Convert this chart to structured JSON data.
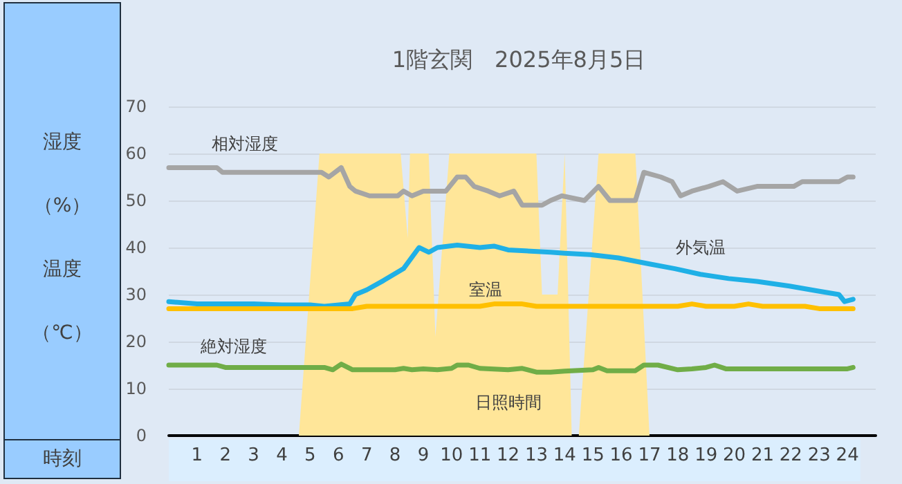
{
  "chart_data": {
    "type": "line",
    "title": "1階玄関　2025年8月5日",
    "ylabel": "湿度（%）温度（℃）",
    "xlabel": "時刻",
    "xlim": [
      0,
      25
    ],
    "xticks": [
      1,
      2,
      3,
      4,
      5,
      6,
      7,
      8,
      9,
      10,
      11,
      12,
      13,
      14,
      15,
      16,
      17,
      18,
      19,
      20,
      21,
      22,
      23,
      24
    ],
    "ylim": [
      0,
      70
    ],
    "yticks": [
      0,
      10,
      20,
      30,
      40,
      50,
      60,
      70
    ],
    "grid": "y",
    "legend": false,
    "marker": "none",
    "line_style": "solid",
    "series": [
      {
        "name": "日照時間",
        "type": "area",
        "color": "#ffe699",
        "x": [
          0,
          4.6,
          5.33,
          8.2,
          8.45,
          8.53,
          9.19,
          9.43,
          9.92,
          13.0,
          13.2,
          13.75,
          14.0,
          14.25,
          14.5,
          15.2,
          16.5,
          17.0,
          24.2
        ],
        "values": [
          0,
          0,
          60,
          60,
          42,
          60,
          60,
          21,
          60,
          60,
          30,
          30,
          60,
          0,
          0,
          60,
          60,
          0,
          0
        ]
      },
      {
        "name": "相対湿度",
        "color": "#a5a5a5",
        "x": [
          0,
          1.7,
          1.9,
          5.4,
          5.66,
          6.1,
          6.4,
          6.6,
          7.1,
          8.1,
          8.3,
          8.6,
          9.0,
          9.8,
          10.2,
          10.5,
          10.8,
          11.3,
          11.7,
          12.2,
          12.5,
          13.2,
          13.5,
          13.9,
          14.7,
          15.2,
          15.6,
          16.5,
          16.8,
          17.4,
          17.8,
          18.1,
          18.5,
          19.1,
          19.6,
          20.1,
          20.8,
          22.1,
          22.4,
          23.7,
          24.0,
          24.2
        ],
        "values": [
          57,
          57,
          56,
          56,
          55,
          57,
          53,
          52,
          51,
          51,
          52,
          51,
          52,
          52,
          55,
          55,
          53,
          52,
          51,
          52,
          49,
          49,
          50,
          51,
          50,
          53,
          50,
          50,
          56,
          55,
          54,
          51,
          52,
          53,
          54,
          52,
          53,
          53,
          54,
          54,
          55,
          55
        ]
      },
      {
        "name": "外気温",
        "color": "#1fb0e6",
        "x": [
          0,
          1,
          2,
          3,
          4,
          5,
          5.5,
          6.4,
          6.6,
          7.0,
          7.6,
          8.3,
          8.85,
          9.2,
          9.5,
          10.2,
          11,
          11.5,
          12,
          13.5,
          14,
          14.9,
          15.9,
          17,
          17.9,
          18.8,
          19.8,
          20.8,
          21.95,
          22.9,
          23.7,
          23.9,
          24.2
        ],
        "values": [
          28.5,
          28,
          28,
          28,
          27.8,
          27.8,
          27.5,
          28,
          30,
          31,
          33,
          35.5,
          40,
          39,
          40,
          40.5,
          40,
          40.3,
          39.5,
          39,
          38.8,
          38.5,
          37.8,
          36.5,
          35.5,
          34.3,
          33.4,
          32.8,
          31.8,
          30.8,
          30,
          28.5,
          29
        ]
      },
      {
        "name": "室温",
        "color": "#ffc000",
        "x": [
          0,
          6.5,
          7,
          11,
          11.5,
          12.5,
          13,
          18,
          18.5,
          19,
          20,
          20.5,
          21,
          22.5,
          23,
          24.2
        ],
        "values": [
          27,
          27,
          27.5,
          27.5,
          28,
          28,
          27.5,
          27.5,
          28,
          27.5,
          27.5,
          28,
          27.5,
          27.5,
          27,
          27
        ]
      },
      {
        "name": "絶対湿度",
        "color": "#70ad47",
        "x": [
          0,
          1.7,
          2,
          5.5,
          5.8,
          6.1,
          6.5,
          8,
          8.3,
          8.6,
          9,
          9.5,
          10,
          10.2,
          10.6,
          11,
          12,
          12.5,
          13,
          13.5,
          14,
          15,
          15.2,
          15.5,
          16.5,
          16.8,
          17.3,
          18,
          18.5,
          19,
          19.3,
          19.7,
          24,
          24.2
        ],
        "values": [
          15,
          15,
          14.5,
          14.5,
          14,
          15.2,
          14,
          14,
          14.3,
          14,
          14.2,
          14,
          14.3,
          15,
          15,
          14.3,
          14,
          14.3,
          13.5,
          13.5,
          13.7,
          14,
          14.5,
          13.8,
          13.8,
          15,
          15,
          14,
          14.2,
          14.5,
          15,
          14.2,
          14.2,
          14.5
        ]
      }
    ]
  }
}
